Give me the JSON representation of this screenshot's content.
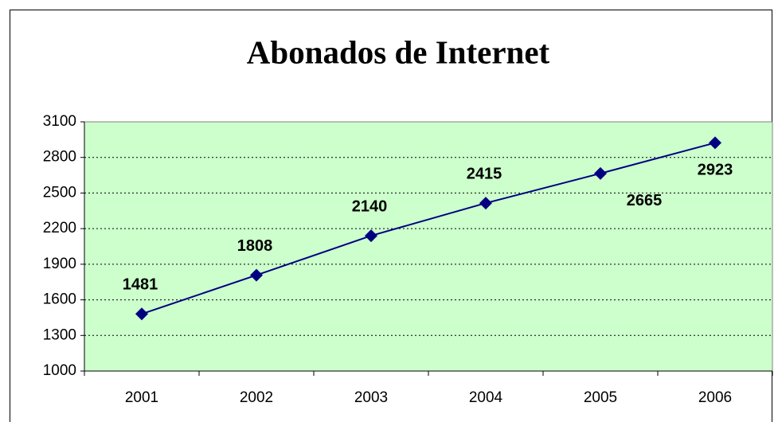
{
  "chart_data": {
    "type": "line",
    "title": "Abonados de Internet",
    "categories": [
      "2001",
      "2002",
      "2003",
      "2004",
      "2005",
      "2006"
    ],
    "series": [
      {
        "name": "Abonados",
        "color": "#000080",
        "values": [
          1481,
          1808,
          2140,
          2415,
          2665,
          2923
        ]
      }
    ],
    "ylim": [
      1000,
      3100
    ],
    "yticks": [
      1000,
      1300,
      1600,
      1900,
      2200,
      2500,
      2800,
      3100
    ],
    "grid": true,
    "plot_background": "#ccffcc"
  }
}
